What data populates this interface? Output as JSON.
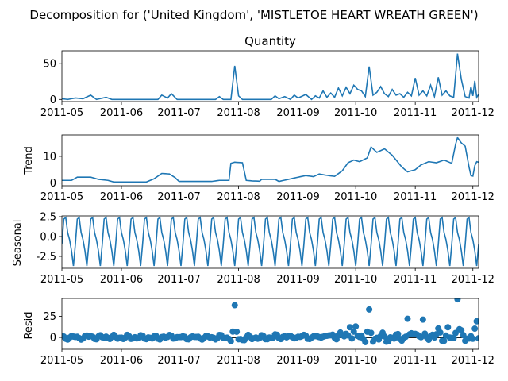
{
  "chart_data": {
    "type": "line",
    "title": "Decomposition for ('United Kingdom', 'MISTLETOE HEART WREATH GREEN')",
    "x_tick_labels": [
      "2011-05",
      "2011-06",
      "2011-07",
      "2011-08",
      "2011-09",
      "2011-10",
      "2011-11",
      "2011-12"
    ],
    "x_range": [
      "2011-05-01",
      "2011-12-04"
    ],
    "line_color": "#1f77b4",
    "panels": [
      {
        "title": "Quantity",
        "ylabel": "",
        "type": "line",
        "ylim": [
          -3,
          68
        ],
        "yticks": [
          0,
          50
        ],
        "keypoints": [
          [
            "2011-05-01",
            1
          ],
          [
            "2011-05-04",
            0
          ],
          [
            "2011-05-08",
            2
          ],
          [
            "2011-05-12",
            1
          ],
          [
            "2011-05-16",
            6
          ],
          [
            "2011-05-19",
            0
          ],
          [
            "2011-05-24",
            3
          ],
          [
            "2011-05-27",
            0
          ],
          [
            "2011-06-20",
            0
          ],
          [
            "2011-06-22",
            6
          ],
          [
            "2011-06-25",
            2
          ],
          [
            "2011-06-27",
            8
          ],
          [
            "2011-06-30",
            0
          ],
          [
            "2011-07-05",
            0
          ],
          [
            "2011-07-20",
            0
          ],
          [
            "2011-07-22",
            4
          ],
          [
            "2011-07-24",
            0
          ],
          [
            "2011-07-28",
            0
          ],
          [
            "2011-07-30",
            47
          ],
          [
            "2011-08-01",
            5
          ],
          [
            "2011-08-03",
            0
          ],
          [
            "2011-08-18",
            0
          ],
          [
            "2011-08-20",
            5
          ],
          [
            "2011-08-22",
            1
          ],
          [
            "2011-08-25",
            4
          ],
          [
            "2011-08-28",
            0
          ],
          [
            "2011-08-30",
            6
          ],
          [
            "2011-09-01",
            2
          ],
          [
            "2011-09-05",
            7
          ],
          [
            "2011-09-08",
            0
          ],
          [
            "2011-09-10",
            5
          ],
          [
            "2011-09-12",
            2
          ],
          [
            "2011-09-14",
            12
          ],
          [
            "2011-09-16",
            3
          ],
          [
            "2011-09-18",
            9
          ],
          [
            "2011-09-20",
            3
          ],
          [
            "2011-09-22",
            16
          ],
          [
            "2011-09-24",
            5
          ],
          [
            "2011-09-26",
            17
          ],
          [
            "2011-09-28",
            8
          ],
          [
            "2011-09-30",
            20
          ],
          [
            "2011-10-02",
            14
          ],
          [
            "2011-10-04",
            12
          ],
          [
            "2011-10-06",
            4
          ],
          [
            "2011-10-08",
            46
          ],
          [
            "2011-10-10",
            6
          ],
          [
            "2011-10-12",
            10
          ],
          [
            "2011-10-14",
            18
          ],
          [
            "2011-10-16",
            8
          ],
          [
            "2011-10-18",
            4
          ],
          [
            "2011-10-20",
            14
          ],
          [
            "2011-10-22",
            6
          ],
          [
            "2011-10-24",
            8
          ],
          [
            "2011-10-26",
            3
          ],
          [
            "2011-10-28",
            10
          ],
          [
            "2011-10-30",
            5
          ],
          [
            "2011-11-01",
            30
          ],
          [
            "2011-11-03",
            6
          ],
          [
            "2011-11-05",
            12
          ],
          [
            "2011-11-07",
            5
          ],
          [
            "2011-11-09",
            20
          ],
          [
            "2011-11-11",
            4
          ],
          [
            "2011-11-13",
            31
          ],
          [
            "2011-11-15",
            6
          ],
          [
            "2011-11-17",
            12
          ],
          [
            "2011-11-19",
            5
          ],
          [
            "2011-11-21",
            3
          ],
          [
            "2011-11-23",
            64
          ],
          [
            "2011-11-25",
            28
          ],
          [
            "2011-11-27",
            4
          ],
          [
            "2011-11-29",
            2
          ],
          [
            "2011-11-30",
            18
          ],
          [
            "2011-12-01",
            5
          ],
          [
            "2011-12-02",
            26
          ],
          [
            "2011-12-03",
            3
          ],
          [
            "2011-12-04",
            7
          ]
        ]
      },
      {
        "title": "",
        "ylabel": "Trend",
        "type": "line",
        "ylim": [
          -1,
          18
        ],
        "yticks": [
          0,
          10
        ],
        "keypoints": [
          [
            "2011-05-01",
            1.0
          ],
          [
            "2011-05-06",
            1.0
          ],
          [
            "2011-05-09",
            2.2
          ],
          [
            "2011-05-16",
            2.2
          ],
          [
            "2011-05-20",
            1.4
          ],
          [
            "2011-05-25",
            1.0
          ],
          [
            "2011-05-28",
            0.4
          ],
          [
            "2011-06-14",
            0.4
          ],
          [
            "2011-06-18",
            1.6
          ],
          [
            "2011-06-22",
            3.6
          ],
          [
            "2011-06-26",
            3.4
          ],
          [
            "2011-06-29",
            2.0
          ],
          [
            "2011-07-01",
            0.6
          ],
          [
            "2011-07-18",
            0.6
          ],
          [
            "2011-07-22",
            1.0
          ],
          [
            "2011-07-27",
            1.0
          ],
          [
            "2011-07-28",
            7.4
          ],
          [
            "2011-07-30",
            7.8
          ],
          [
            "2011-08-03",
            7.6
          ],
          [
            "2011-08-05",
            1.0
          ],
          [
            "2011-08-08",
            0.8
          ],
          [
            "2011-08-12",
            0.7
          ],
          [
            "2011-08-13",
            1.4
          ],
          [
            "2011-08-20",
            1.4
          ],
          [
            "2011-08-22",
            0.6
          ],
          [
            "2011-09-01",
            2.2
          ],
          [
            "2011-09-05",
            2.8
          ],
          [
            "2011-09-09",
            2.4
          ],
          [
            "2011-09-12",
            3.4
          ],
          [
            "2011-09-15",
            3.0
          ],
          [
            "2011-09-20",
            2.5
          ],
          [
            "2011-09-24",
            4.6
          ],
          [
            "2011-09-27",
            7.6
          ],
          [
            "2011-09-30",
            8.6
          ],
          [
            "2011-10-03",
            8.0
          ],
          [
            "2011-10-07",
            9.4
          ],
          [
            "2011-10-09",
            13.5
          ],
          [
            "2011-10-12",
            11.5
          ],
          [
            "2011-10-16",
            12.8
          ],
          [
            "2011-10-20",
            10.4
          ],
          [
            "2011-10-25",
            6.0
          ],
          [
            "2011-10-28",
            4.2
          ],
          [
            "2011-11-01",
            5.0
          ],
          [
            "2011-11-04",
            6.8
          ],
          [
            "2011-11-08",
            8.0
          ],
          [
            "2011-11-12",
            7.6
          ],
          [
            "2011-11-16",
            8.6
          ],
          [
            "2011-11-20",
            7.4
          ],
          [
            "2011-11-22",
            14.5
          ],
          [
            "2011-11-23",
            17.0
          ],
          [
            "2011-11-25",
            15.0
          ],
          [
            "2011-11-27",
            13.8
          ],
          [
            "2011-11-29",
            6.0
          ],
          [
            "2011-11-30",
            2.8
          ],
          [
            "2011-12-01",
            2.6
          ],
          [
            "2011-12-02",
            6.5
          ],
          [
            "2011-12-03",
            8.0
          ],
          [
            "2011-12-04",
            7.8
          ]
        ]
      },
      {
        "title": "",
        "ylabel": "Seasonal",
        "type": "line",
        "ylim": [
          -4.0,
          2.6
        ],
        "yticks": [
          -2.5,
          0.0,
          2.5
        ],
        "period_days": 7,
        "weekly_pattern": [
          -1.0,
          2.2,
          2.4,
          0.5,
          -0.4,
          -1.8,
          -3.7
        ]
      },
      {
        "title": "",
        "ylabel": "Resid",
        "type": "scatter",
        "ylim": [
          -14,
          46
        ],
        "yticks": [
          0,
          25
        ],
        "zero_line": true,
        "outliers": [
          [
            "2011-07-30",
            38
          ],
          [
            "2011-09-28",
            12
          ],
          [
            "2011-10-01",
            13
          ],
          [
            "2011-10-08",
            33
          ],
          [
            "2011-10-28",
            22
          ],
          [
            "2011-11-05",
            21
          ],
          [
            "2011-11-18",
            12
          ],
          [
            "2011-11-23",
            45
          ],
          [
            "2011-12-03",
            19
          ]
        ]
      }
    ]
  }
}
